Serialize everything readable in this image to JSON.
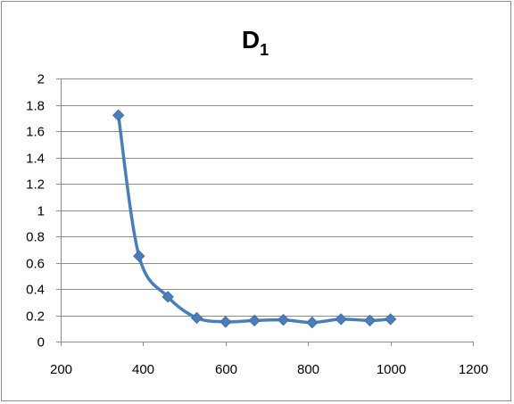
{
  "chart_data": {
    "type": "scatter",
    "title": "D",
    "title_subscript": "1",
    "xlabel": "",
    "ylabel": "",
    "xlim": [
      200,
      1200
    ],
    "ylim": [
      0,
      2
    ],
    "x_ticks": [
      200,
      400,
      600,
      800,
      1000,
      1200
    ],
    "y_ticks": [
      0,
      0.2,
      0.4,
      0.6,
      0.8,
      1,
      1.2,
      1.4,
      1.6,
      1.8,
      2
    ],
    "grid": "horizontal",
    "legend": "none",
    "series_color": "#4A7EBB",
    "marker": "diamond",
    "smooth_line": true,
    "series": [
      {
        "x": [
          340,
          390,
          460,
          530,
          600,
          670,
          740,
          810,
          880,
          950,
          1000
        ],
        "y": [
          1.72,
          0.65,
          0.34,
          0.18,
          0.15,
          0.16,
          0.165,
          0.145,
          0.17,
          0.16,
          0.17
        ]
      }
    ]
  }
}
